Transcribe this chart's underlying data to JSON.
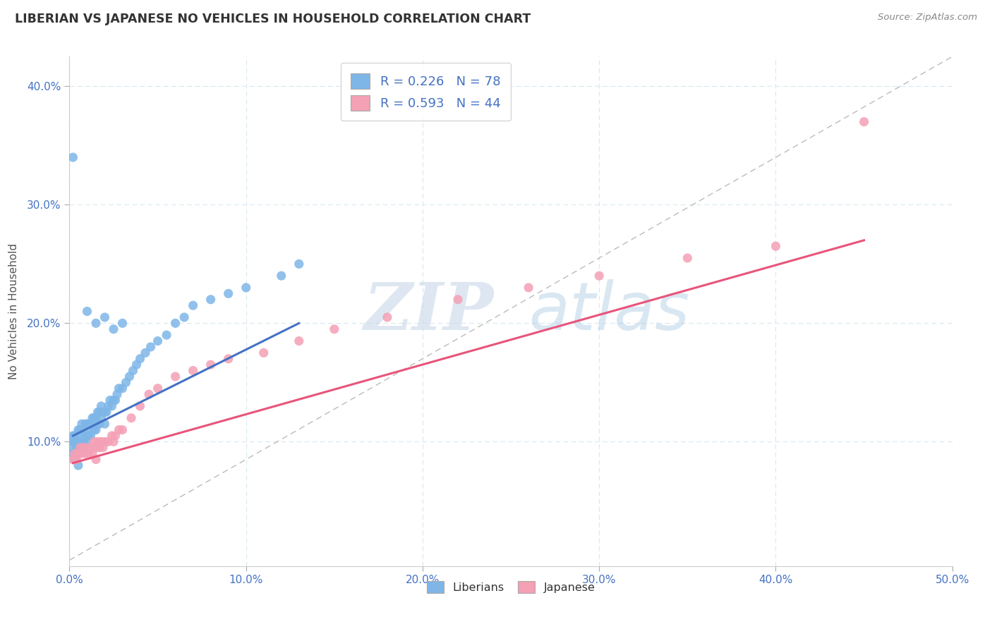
{
  "title": "LIBERIAN VS JAPANESE NO VEHICLES IN HOUSEHOLD CORRELATION CHART",
  "source": "Source: ZipAtlas.com",
  "ylabel": "No Vehicles in Household",
  "xlim": [
    0.0,
    0.5
  ],
  "ylim": [
    -0.005,
    0.425
  ],
  "xticks": [
    0.0,
    0.1,
    0.2,
    0.3,
    0.4,
    0.5
  ],
  "xtick_labels": [
    "0.0%",
    "10.0%",
    "20.0%",
    "30.0%",
    "40.0%",
    "50.0%"
  ],
  "yticks": [
    0.1,
    0.2,
    0.3,
    0.4
  ],
  "ytick_labels": [
    "10.0%",
    "20.0%",
    "30.0%",
    "40.0%"
  ],
  "liberian_R": 0.226,
  "liberian_N": 78,
  "japanese_R": 0.593,
  "japanese_N": 44,
  "liberian_color": "#7eb6e8",
  "japanese_color": "#f4a0b5",
  "liberian_line_color": "#4472c4",
  "japanese_line_color": "#e8547a",
  "diagonal_color": "#aaaaaa",
  "background_color": "#ffffff",
  "grid_color": "#d8e8f0",
  "watermark_zip": "ZIP",
  "watermark_atlas": "atlas",
  "liberian_x": [
    0.001,
    0.002,
    0.002,
    0.002,
    0.003,
    0.003,
    0.003,
    0.004,
    0.004,
    0.005,
    0.005,
    0.005,
    0.006,
    0.006,
    0.006,
    0.007,
    0.007,
    0.007,
    0.008,
    0.008,
    0.008,
    0.009,
    0.009,
    0.01,
    0.01,
    0.01,
    0.011,
    0.011,
    0.012,
    0.012,
    0.013,
    0.013,
    0.014,
    0.014,
    0.015,
    0.015,
    0.016,
    0.016,
    0.017,
    0.017,
    0.018,
    0.018,
    0.019,
    0.02,
    0.02,
    0.021,
    0.022,
    0.023,
    0.024,
    0.025,
    0.026,
    0.027,
    0.028,
    0.03,
    0.032,
    0.034,
    0.036,
    0.038,
    0.04,
    0.043,
    0.046,
    0.05,
    0.055,
    0.06,
    0.065,
    0.07,
    0.08,
    0.09,
    0.1,
    0.12,
    0.13,
    0.002,
    0.01,
    0.015,
    0.02,
    0.025,
    0.03,
    0.005
  ],
  "liberian_y": [
    0.095,
    0.09,
    0.1,
    0.105,
    0.085,
    0.1,
    0.105,
    0.095,
    0.1,
    0.09,
    0.1,
    0.11,
    0.095,
    0.1,
    0.11,
    0.095,
    0.105,
    0.115,
    0.095,
    0.1,
    0.11,
    0.105,
    0.115,
    0.1,
    0.105,
    0.115,
    0.105,
    0.115,
    0.105,
    0.115,
    0.11,
    0.12,
    0.11,
    0.12,
    0.11,
    0.12,
    0.115,
    0.125,
    0.115,
    0.125,
    0.12,
    0.13,
    0.125,
    0.115,
    0.125,
    0.125,
    0.13,
    0.135,
    0.13,
    0.135,
    0.135,
    0.14,
    0.145,
    0.145,
    0.15,
    0.155,
    0.16,
    0.165,
    0.17,
    0.175,
    0.18,
    0.185,
    0.19,
    0.2,
    0.205,
    0.215,
    0.22,
    0.225,
    0.23,
    0.24,
    0.25,
    0.34,
    0.21,
    0.2,
    0.205,
    0.195,
    0.2,
    0.08
  ],
  "japanese_x": [
    0.002,
    0.003,
    0.004,
    0.005,
    0.006,
    0.007,
    0.008,
    0.009,
    0.01,
    0.011,
    0.012,
    0.013,
    0.014,
    0.015,
    0.016,
    0.017,
    0.018,
    0.019,
    0.02,
    0.022,
    0.024,
    0.026,
    0.028,
    0.03,
    0.035,
    0.04,
    0.045,
    0.05,
    0.06,
    0.07,
    0.08,
    0.09,
    0.11,
    0.13,
    0.15,
    0.18,
    0.22,
    0.26,
    0.3,
    0.35,
    0.4,
    0.45,
    0.015,
    0.025
  ],
  "japanese_y": [
    0.085,
    0.09,
    0.085,
    0.09,
    0.095,
    0.09,
    0.095,
    0.09,
    0.095,
    0.09,
    0.095,
    0.09,
    0.1,
    0.095,
    0.1,
    0.095,
    0.1,
    0.095,
    0.1,
    0.1,
    0.105,
    0.105,
    0.11,
    0.11,
    0.12,
    0.13,
    0.14,
    0.145,
    0.155,
    0.16,
    0.165,
    0.17,
    0.175,
    0.185,
    0.195,
    0.205,
    0.22,
    0.23,
    0.24,
    0.255,
    0.265,
    0.37,
    0.085,
    0.1
  ],
  "liberian_line_x": [
    0.002,
    0.13
  ],
  "liberian_line_y": [
    0.105,
    0.2
  ],
  "japanese_line_x": [
    0.002,
    0.45
  ],
  "japanese_line_y": [
    0.082,
    0.27
  ]
}
